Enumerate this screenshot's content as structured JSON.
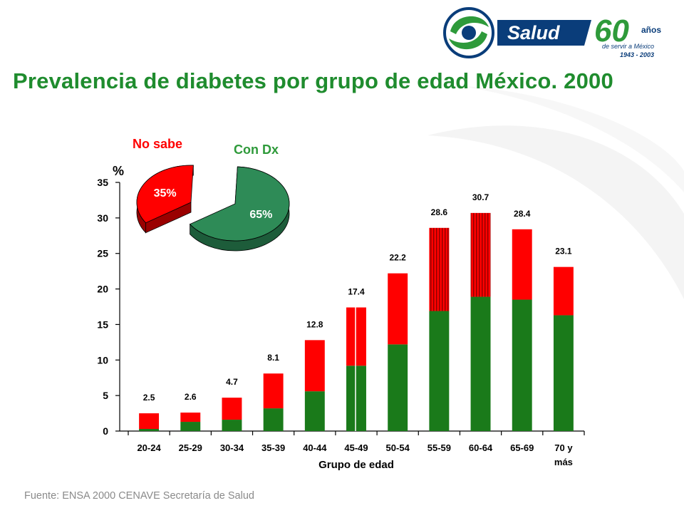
{
  "header": {
    "title": "Prevalencia de diabetes por grupo de edad México. 2000",
    "logo": {
      "brand": "Salud",
      "anniversary": "60",
      "anniversary_suffix": "años",
      "tagline": "de servir a México",
      "years": "1943 - 2003"
    }
  },
  "footer": {
    "source": "Fuente: ENSA 2000 CENAVE Secretaría de Salud"
  },
  "colors": {
    "title_green": "#1f8c2e",
    "bar_green": "#1a7a1a",
    "bar_red": "#ff0000",
    "pie_green": "#2e8b57",
    "logo_blue": "#0a3d7a"
  },
  "chart_data": [
    {
      "type": "bar",
      "stacked": true,
      "title": "Prevalencia de diabetes por grupo de edad México. 2000",
      "xlabel": "Grupo de edad",
      "ylabel": "%",
      "ylim": [
        0,
        35
      ],
      "yticks": [
        "0",
        "5",
        "10",
        "15",
        "20",
        "25",
        "30",
        "35"
      ],
      "categories": [
        "20-24",
        "25-29",
        "30-34",
        "35-39",
        "40-44",
        "45-49",
        "50-54",
        "55-59",
        "60-64",
        "65-69",
        "70 y más"
      ],
      "series": [
        {
          "name": "Con Dx",
          "color": "#1a7a1a",
          "values": [
            0.3,
            1.3,
            1.6,
            3.2,
            5.6,
            9.2,
            12.2,
            16.9,
            18.9,
            18.5,
            16.3
          ]
        },
        {
          "name": "No sabe",
          "color": "#ff0000",
          "values": [
            2.2,
            1.3,
            3.1,
            4.9,
            7.2,
            8.2,
            10.0,
            11.7,
            11.8,
            9.9,
            6.8
          ]
        }
      ],
      "totals": [
        "2.5",
        "2.6",
        "4.7",
        "8.1",
        "12.8",
        "17.4",
        "22.2",
        "28.6",
        "30.7",
        "28.4",
        "23.1"
      ],
      "grid": false,
      "legend": "top-left"
    },
    {
      "type": "pie",
      "labels": [
        "No sabe",
        "Con Dx"
      ],
      "values": [
        35,
        65
      ],
      "value_labels": [
        "35%",
        "65%"
      ],
      "colors": [
        "#ff0000",
        "#2e8b57"
      ],
      "exploded": true
    }
  ]
}
